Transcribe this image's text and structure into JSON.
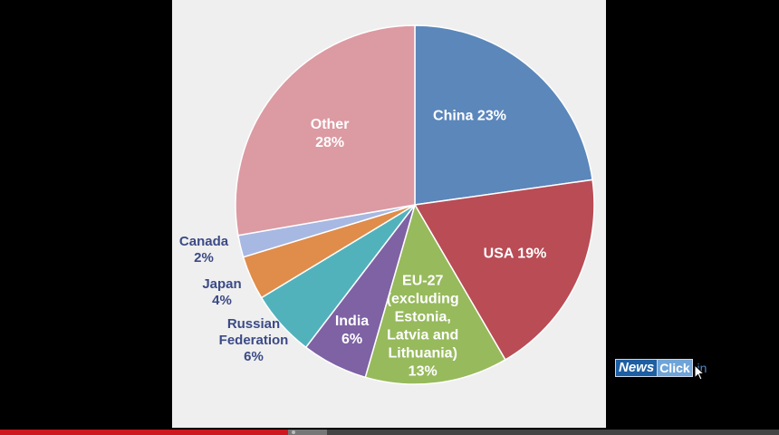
{
  "chart_data": {
    "type": "pie",
    "title": "",
    "slices": [
      {
        "label": [
          "China 23%"
        ],
        "value": 23,
        "color": "#5b87bb",
        "label_pos": "inside"
      },
      {
        "label": [
          "USA 19%"
        ],
        "value": 19,
        "color": "#b94c55",
        "label_pos": "inside"
      },
      {
        "label": [
          "EU-27",
          "(excluding",
          "Estonia,",
          "Latvia and",
          "Lithuania)",
          "13%"
        ],
        "value": 13,
        "color": "#97ba5c",
        "label_pos": "inside"
      },
      {
        "label": [
          "India",
          "6%"
        ],
        "value": 6,
        "color": "#7e62a4",
        "label_pos": "inside"
      },
      {
        "label": [
          "Russian",
          "Federation",
          "6%"
        ],
        "value": 6,
        "color": "#52b2bc",
        "label_pos": "outside"
      },
      {
        "label": [
          "Japan",
          "4%"
        ],
        "value": 4,
        "color": "#e08c4a",
        "label_pos": "outside"
      },
      {
        "label": [
          "Canada",
          "2%"
        ],
        "value": 2,
        "color": "#a7b8e2",
        "label_pos": "outside"
      },
      {
        "label": [
          "Other",
          "28%"
        ],
        "value": 28,
        "color": "#dc9aa2",
        "label_pos": "inside"
      }
    ]
  },
  "branding": {
    "logo_news": "News",
    "logo_click": "Click",
    "logo_in": ".in"
  },
  "player": {
    "progress_fraction": 0.37,
    "buffer_fraction": 0.42
  },
  "colors": {
    "outside_label": "#3b4a86",
    "background": "#000000",
    "slide": "#efefef"
  }
}
